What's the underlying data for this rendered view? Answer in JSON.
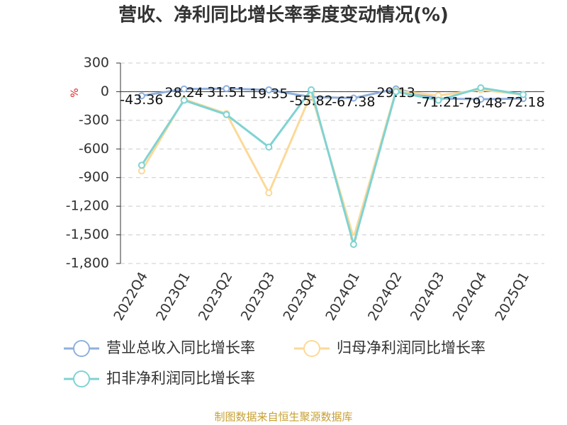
{
  "chart_data": {
    "type": "line",
    "title": "营收、净利同比增长率季度变动情况(%)",
    "y_axis_label": "%",
    "categories": [
      "2022Q4",
      "2023Q1",
      "2023Q2",
      "2023Q3",
      "2023Q4",
      "2024Q1",
      "2024Q2",
      "2024Q3",
      "2024Q4",
      "2025Q1"
    ],
    "series": [
      {
        "name": "营业总收入同比增长率",
        "color": "#8fb0dd",
        "values": [
          -43.36,
          28.24,
          31.51,
          19.35,
          -55.82,
          -67.38,
          29.13,
          -71.21,
          -79.48,
          -72.18
        ]
      },
      {
        "name": "归母净利润同比增长率",
        "color": "#fcd999",
        "values": [
          -830,
          -80,
          -230,
          -1060,
          -20,
          -1530,
          10,
          -40,
          20,
          -30
        ]
      },
      {
        "name": "扣非净利润同比增长率",
        "color": "#7fd3d3",
        "values": [
          -770,
          -90,
          -240,
          -580,
          20,
          -1600,
          0,
          -90,
          40,
          -30
        ]
      }
    ],
    "ylim": [
      -1800,
      300
    ],
    "yticks": [
      300,
      0,
      -300,
      -600,
      -900,
      {
        "value": -1200,
        "label": "-1,200"
      },
      {
        "value": -1500,
        "label": "-1,500"
      },
      {
        "value": -1800,
        "label": "-1,800"
      }
    ],
    "grid": true,
    "source": "制图数据来自恒生聚源数据库"
  }
}
